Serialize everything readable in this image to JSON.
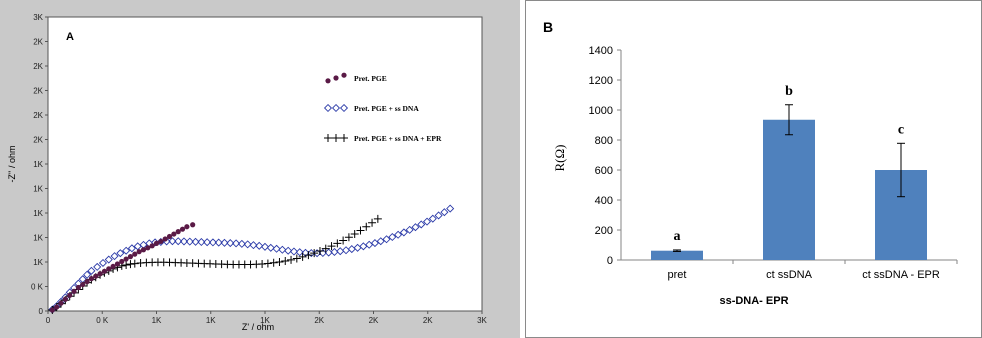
{
  "chart_data": [
    {
      "panel_label": "A",
      "type": "scatter",
      "xlabel": "Z' / ohm",
      "ylabel": "-Z'' / ohm",
      "x_ticks": [
        "0",
        "0 K",
        "1K",
        "1K",
        "1K",
        "2K",
        "2K",
        "2K",
        "3K"
      ],
      "y_ticks": [
        "0",
        "0 K",
        "1K",
        "1K",
        "1K",
        "1K",
        "1K",
        "2K",
        "2K",
        "2K",
        "2K",
        "2K",
        "3K"
      ],
      "xlim": [
        0,
        3000
      ],
      "ylim": [
        0,
        3000
      ],
      "grid": false,
      "legend_position": "right",
      "series": [
        {
          "name": "Pret. PGE",
          "marker": "filled-circle",
          "color": "#5a1a46",
          "points": [
            [
              30,
              10
            ],
            [
              60,
              40
            ],
            [
              90,
              80
            ],
            [
              120,
              120
            ],
            [
              150,
              160
            ],
            [
              180,
              200
            ],
            [
              210,
              240
            ],
            [
              240,
              270
            ],
            [
              270,
              300
            ],
            [
              300,
              330
            ],
            [
              330,
              355
            ],
            [
              360,
              380
            ],
            [
              390,
              405
            ],
            [
              420,
              430
            ],
            [
              450,
              455
            ],
            [
              480,
              480
            ],
            [
              510,
              505
            ],
            [
              540,
              530
            ],
            [
              570,
              555
            ],
            [
              600,
              580
            ],
            [
              630,
              605
            ],
            [
              660,
              625
            ],
            [
              690,
              645
            ],
            [
              720,
              665
            ],
            [
              750,
              690
            ],
            [
              780,
              710
            ],
            [
              810,
              735
            ],
            [
              840,
              760
            ],
            [
              870,
              785
            ],
            [
              900,
              810
            ],
            [
              930,
              835
            ],
            [
              960,
              860
            ],
            [
              1000,
              880
            ]
          ]
        },
        {
          "name": "Pret. PGE + ss DNA",
          "marker": "open-diamond",
          "color": "#2b3aa8",
          "points": [
            [
              30,
              15
            ],
            [
              60,
              50
            ],
            [
              90,
              95
            ],
            [
              120,
              140
            ],
            [
              150,
              190
            ],
            [
              180,
              235
            ],
            [
              210,
              280
            ],
            [
              240,
              325
            ],
            [
              270,
              370
            ],
            [
              300,
              410
            ],
            [
              340,
              450
            ],
            [
              380,
              490
            ],
            [
              420,
              525
            ],
            [
              460,
              560
            ],
            [
              500,
              590
            ],
            [
              540,
              615
            ],
            [
              580,
              640
            ],
            [
              620,
              660
            ],
            [
              660,
              675
            ],
            [
              700,
              690
            ],
            [
              740,
              700
            ],
            [
              780,
              705
            ],
            [
              820,
              710
            ],
            [
              860,
              712
            ],
            [
              900,
              712
            ],
            [
              940,
              710
            ],
            [
              980,
              708
            ],
            [
              1020,
              706
            ],
            [
              1060,
              704
            ],
            [
              1100,
              702
            ],
            [
              1140,
              700
            ],
            [
              1180,
              698
            ],
            [
              1220,
              696
            ],
            [
              1260,
              693
            ],
            [
              1300,
              690
            ],
            [
              1340,
              685
            ],
            [
              1380,
              680
            ],
            [
              1420,
              672
            ],
            [
              1460,
              665
            ],
            [
              1500,
              655
            ],
            [
              1540,
              645
            ],
            [
              1580,
              635
            ],
            [
              1620,
              625
            ],
            [
              1660,
              615
            ],
            [
              1700,
              607
            ],
            [
              1740,
              600
            ],
            [
              1780,
              594
            ],
            [
              1820,
              591
            ],
            [
              1860,
              590
            ],
            [
              1900,
              592
            ],
            [
              1940,
              596
            ],
            [
              1980,
              602
            ],
            [
              2020,
              610
            ],
            [
              2060,
              620
            ],
            [
              2100,
              632
            ],
            [
              2140,
              645
            ],
            [
              2180,
              660
            ],
            [
              2220,
              676
            ],
            [
              2260,
              693
            ],
            [
              2300,
              712
            ],
            [
              2340,
              732
            ],
            [
              2380,
              755
            ],
            [
              2420,
              778
            ],
            [
              2460,
              802
            ],
            [
              2500,
              828
            ],
            [
              2540,
              855
            ],
            [
              2580,
              883
            ],
            [
              2620,
              912
            ],
            [
              2660,
              942
            ],
            [
              2700,
              975
            ],
            [
              2740,
              1008
            ],
            [
              2780,
              1045
            ]
          ]
        },
        {
          "name": "Pret. PGE + ss DNA + EPR",
          "marker": "plus",
          "color": "#000000",
          "points": [
            [
              30,
              10
            ],
            [
              60,
              40
            ],
            [
              90,
              75
            ],
            [
              120,
              110
            ],
            [
              150,
              150
            ],
            [
              180,
              185
            ],
            [
              210,
              220
            ],
            [
              240,
              255
            ],
            [
              270,
              290
            ],
            [
              300,
              320
            ],
            [
              330,
              345
            ],
            [
              360,
              370
            ],
            [
              390,
              390
            ],
            [
              420,
              410
            ],
            [
              450,
              430
            ],
            [
              480,
              445
            ],
            [
              510,
              460
            ],
            [
              540,
              470
            ],
            [
              570,
              478
            ],
            [
              600,
              484
            ],
            [
              640,
              490
            ],
            [
              680,
              494
            ],
            [
              720,
              496
            ],
            [
              760,
              497
            ],
            [
              800,
              497
            ],
            [
              840,
              496
            ],
            [
              880,
              494
            ],
            [
              920,
              492
            ],
            [
              960,
              490
            ],
            [
              1000,
              488
            ],
            [
              1040,
              486
            ],
            [
              1080,
              484
            ],
            [
              1120,
              482
            ],
            [
              1160,
              480
            ],
            [
              1200,
              478
            ],
            [
              1240,
              476
            ],
            [
              1280,
              475
            ],
            [
              1320,
              474
            ],
            [
              1360,
              474
            ],
            [
              1400,
              475
            ],
            [
              1440,
              477
            ],
            [
              1480,
              480
            ],
            [
              1520,
              485
            ],
            [
              1560,
              492
            ],
            [
              1600,
              500
            ],
            [
              1640,
              510
            ],
            [
              1680,
              522
            ],
            [
              1720,
              536
            ],
            [
              1760,
              552
            ],
            [
              1800,
              570
            ],
            [
              1840,
              590
            ],
            [
              1880,
              612
            ],
            [
              1920,
              636
            ],
            [
              1960,
              662
            ],
            [
              2000,
              690
            ],
            [
              2040,
              720
            ],
            [
              2080,
              752
            ],
            [
              2120,
              786
            ],
            [
              2160,
              822
            ],
            [
              2200,
              860
            ],
            [
              2240,
              900
            ],
            [
              2280,
              940
            ]
          ]
        }
      ]
    },
    {
      "panel_label": "B",
      "type": "bar",
      "categories": [
        "pret",
        "ct ssDNA",
        "ct ssDNA - EPR"
      ],
      "values": [
        62,
        935,
        600
      ],
      "errors": [
        5,
        100,
        178
      ],
      "value_labels": [
        "a",
        "b",
        "c"
      ],
      "xlabel": "ss-DNA- EPR",
      "ylabel": "R(Ω)",
      "ylim": [
        0,
        1400
      ],
      "y_ticks": [
        "0",
        "200",
        "400",
        "600",
        "800",
        "1000",
        "1200",
        "1400"
      ],
      "bar_color": "#4f81bd",
      "grid": false
    }
  ]
}
